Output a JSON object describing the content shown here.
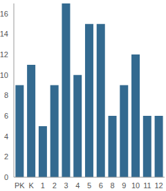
{
  "chart_data": {
    "type": "bar",
    "categories": [
      "PK",
      "K",
      "1",
      "2",
      "3",
      "4",
      "5",
      "6",
      "8",
      "9",
      "10",
      "11",
      "12"
    ],
    "values": [
      9,
      11,
      5,
      9,
      17,
      10,
      15,
      15,
      6,
      9,
      12,
      6,
      6
    ],
    "color": "#336a90",
    "ylim": [
      0,
      17
    ],
    "yticks": [
      0,
      2,
      4,
      6,
      8,
      10,
      12,
      14,
      16
    ],
    "grid": false
  }
}
